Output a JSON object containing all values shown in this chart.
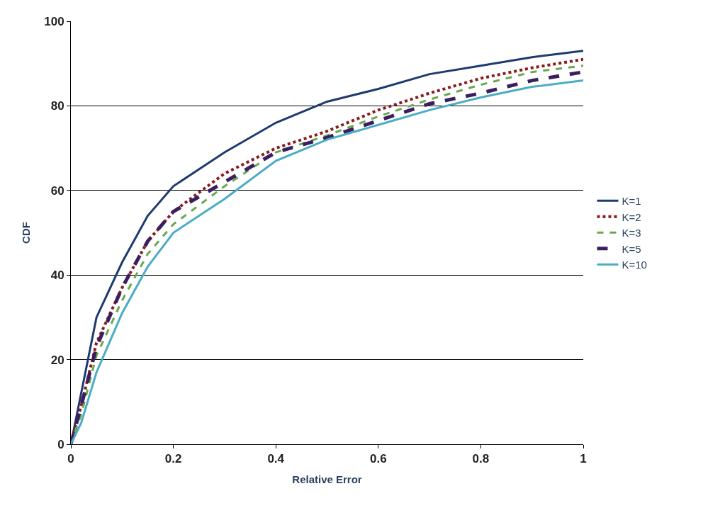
{
  "chart_data": {
    "type": "line",
    "xlabel": "Relative Error",
    "ylabel": "CDF",
    "x": [
      0,
      0.02,
      0.05,
      0.1,
      0.15,
      0.2,
      0.3,
      0.4,
      0.5,
      0.6,
      0.7,
      0.8,
      0.9,
      1.0
    ],
    "series": [
      {
        "name": "K=1",
        "color": "#1f3a6e",
        "line_style": "solid",
        "values": [
          0,
          12,
          30,
          43,
          54,
          61,
          69,
          76,
          81,
          84,
          87.5,
          89.5,
          91.5,
          93
        ]
      },
      {
        "name": "K=2",
        "color": "#8b1a1a",
        "line_style": "dotted",
        "values": [
          0,
          9,
          24,
          37,
          48,
          55,
          64,
          70,
          74,
          79,
          83,
          86.5,
          89,
          91
        ]
      },
      {
        "name": "K=3",
        "color": "#6aa84f",
        "line_style": "dashed",
        "values": [
          0,
          7,
          21,
          34,
          45,
          52,
          61,
          69,
          73,
          77.5,
          81.5,
          85,
          88,
          89.5
        ]
      },
      {
        "name": "K=5",
        "color": "#3b1e5e",
        "line_style": "dashed",
        "values": [
          0,
          9,
          23,
          37,
          48,
          55,
          62,
          69,
          72.5,
          76.5,
          80.5,
          83,
          86,
          88
        ]
      },
      {
        "name": "K=10",
        "color": "#4bacc6",
        "line_style": "solid",
        "values": [
          0,
          5,
          17,
          31,
          42,
          50,
          58,
          67,
          72,
          75.5,
          79,
          82,
          84.5,
          86
        ]
      }
    ],
    "xlim": [
      0,
      1
    ],
    "xticks": [
      0,
      0.2,
      0.4,
      0.6,
      0.8,
      1
    ],
    "ylim": [
      0,
      100
    ],
    "yticks": [
      0,
      20,
      40,
      60,
      80,
      100
    ],
    "grid": "y",
    "legend": "right",
    "marker": "none"
  }
}
